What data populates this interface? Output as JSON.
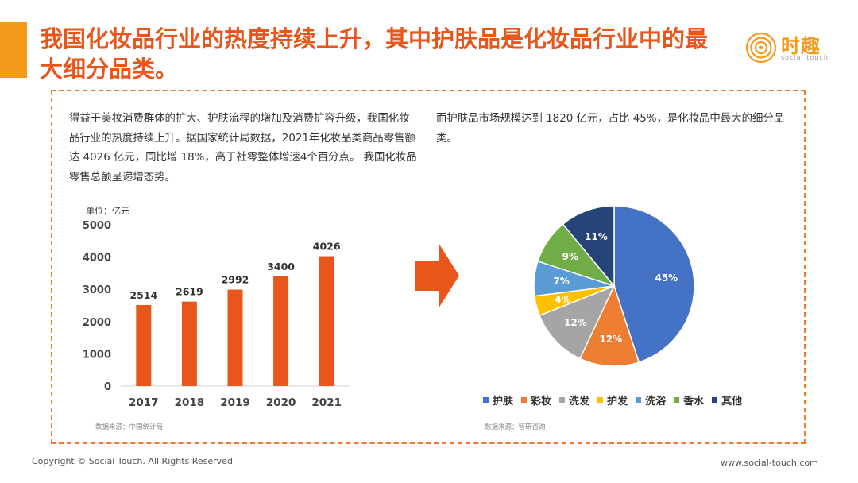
{
  "title": "我国化妆品行业的热度持续上升，其中护肤品是化妆品行业中的最大细分品类。",
  "logo": {
    "name": "时趣",
    "sub": "social touch"
  },
  "left_paragraph": "得益于美妆消费群体的扩大、护肤流程的增加及消费扩容升级，我国化妆品行业的热度持续上升。据国家统计局数据，2021年化妆品类商品零售额达 4026 亿元，同比增 18%，高于社零整体增速4个百分点。 我国化妆品零售总额呈递增态势。",
  "right_paragraph": "而护肤品市场规模达到 1820 亿元，占比 45%，是化妆品中最大的细分品类。",
  "sources": {
    "left": "数据来源：中国统计局",
    "right": "数据来源：智研咨询"
  },
  "footer": {
    "copyright": "Copyright © Social Touch. All Rights Reserved",
    "website": "www.social-touch.com"
  },
  "colors": {
    "title": "#e8561b",
    "accent": "#f39a1c",
    "bar": "#e8561b",
    "frame": "#f07a2c"
  },
  "chart_data": [
    {
      "type": "bar",
      "unit_label": "单位：亿元",
      "categories": [
        "2017",
        "2018",
        "2019",
        "2020",
        "2021"
      ],
      "values": [
        2514,
        2619,
        2992,
        3400,
        4026
      ],
      "yticks": [
        "0",
        "1000",
        "2000",
        "3000",
        "4000",
        "5000"
      ],
      "ylim": [
        0,
        5000
      ],
      "grid": false,
      "data_labels": true
    },
    {
      "type": "pie",
      "slices": [
        {
          "label": "护肤",
          "value": 45,
          "display": "45%",
          "color": "#4472c4"
        },
        {
          "label": "彩妆",
          "value": 12,
          "display": "12%",
          "color": "#ed7d31"
        },
        {
          "label": "洗发",
          "value": 12,
          "display": "12%",
          "color": "#a5a5a5"
        },
        {
          "label": "护发",
          "value": 4,
          "display": "4%",
          "color": "#ffc000"
        },
        {
          "label": "洗浴",
          "value": 7,
          "display": "7%",
          "color": "#5b9bd5"
        },
        {
          "label": "香水",
          "value": 9,
          "display": "9%",
          "color": "#70ad47"
        },
        {
          "label": "其他",
          "value": 11,
          "display": "11%",
          "color": "#264478"
        }
      ],
      "legend_position": "bottom"
    }
  ]
}
